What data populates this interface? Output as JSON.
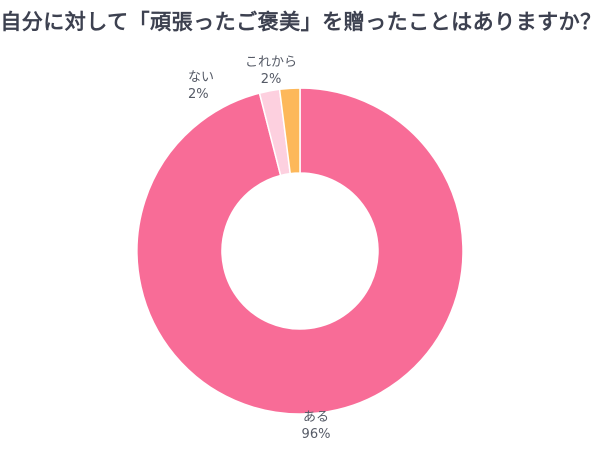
{
  "title": "自分に対して「頑張ったご褒美」を贈ったことはありますか？",
  "chart_data": {
    "type": "pie",
    "subtype": "donut",
    "title": "自分に対して「頑張ったご褒美」を贈ったことはありますか？",
    "categories": [
      "ある",
      "ない",
      "これから"
    ],
    "values": [
      96,
      2,
      2
    ],
    "unit": "%",
    "colors": [
      "#f86c97",
      "#fdd0df",
      "#fdb85a"
    ],
    "start_angle": "12 o'clock",
    "direction": "clockwise",
    "legend": "none (inline labels)"
  },
  "labels": [
    {
      "name": "ある",
      "value": "96%"
    },
    {
      "name": "ない",
      "value": "2%"
    },
    {
      "name": "これから",
      "value": "2%"
    }
  ]
}
